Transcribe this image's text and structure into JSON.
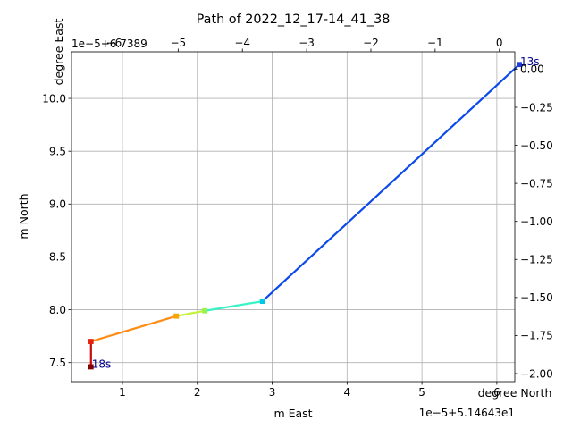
{
  "chart_data": {
    "type": "line",
    "title": "Path of 2022_12_17-14_41_38",
    "xlabel": "m East",
    "ylabel": "m North",
    "top_xlabel": "degree East",
    "right_ylabel": "degree North",
    "grid": true,
    "xlim": [
      0.32,
      6.24
    ],
    "ylim": [
      7.32,
      10.44
    ],
    "top_xlim": [
      -6.66,
      0.24
    ],
    "right_ylim": [
      -2.053,
      0.114
    ],
    "x_ticks": [
      1,
      2,
      3,
      4,
      5,
      6
    ],
    "y_ticks": [
      7.5,
      8.0,
      8.5,
      9.0,
      9.5,
      10.0
    ],
    "top_x_ticks": [
      -6,
      -5,
      -4,
      -3,
      -2,
      -1,
      0
    ],
    "right_y_ticks": [
      0.0,
      -0.25,
      -0.5,
      -0.75,
      -1.0,
      -1.25,
      -1.5,
      -1.75,
      -2.0
    ],
    "x_tick_labels": [
      "1",
      "2",
      "3",
      "4",
      "5",
      "6"
    ],
    "y_tick_labels": [
      "7.5",
      "8.0",
      "8.5",
      "9.0",
      "9.5",
      "10.0"
    ],
    "top_x_tick_labels": [
      "−6",
      "−5",
      "−4",
      "−3",
      "−2",
      "−1",
      "0"
    ],
    "right_y_tick_labels": [
      "0.00",
      "−0.25",
      "−0.50",
      "−0.75",
      "−1.00",
      "−1.25",
      "−1.50",
      "−1.75",
      "−2.00"
    ],
    "x_offset_label": "1e−5+5.14643e1",
    "top_x_offset_label": "1e−5+6.7389",
    "points": [
      {
        "x": 6.3,
        "y": 10.32,
        "color": "#1f3cdc"
      },
      {
        "x": 2.87,
        "y": 8.08,
        "color": "#00c8e6"
      },
      {
        "x": 2.1,
        "y": 7.99,
        "color": "#96f54b"
      },
      {
        "x": 1.72,
        "y": 7.94,
        "color": "#f5a500"
      },
      {
        "x": 0.58,
        "y": 7.7,
        "color": "#e6230f"
      },
      {
        "x": 0.58,
        "y": 7.46,
        "color": "#820000"
      }
    ],
    "segments": [
      {
        "from": 0,
        "to": 1,
        "color": "#0b49eb"
      },
      {
        "from": 1,
        "to": 2,
        "color": "#3af3c5"
      },
      {
        "from": 2,
        "to": 3,
        "color": "#c4f23a"
      },
      {
        "from": 3,
        "to": 4,
        "color": "#ff8c14"
      },
      {
        "from": 4,
        "to": 5,
        "color": "#c80a0a"
      }
    ],
    "annotations": [
      {
        "text": "13s",
        "x": 6.3,
        "y": 10.32,
        "color": "#00008b"
      },
      {
        "text": "18s",
        "x": 0.58,
        "y": 7.46,
        "color": "#00008b"
      }
    ]
  }
}
